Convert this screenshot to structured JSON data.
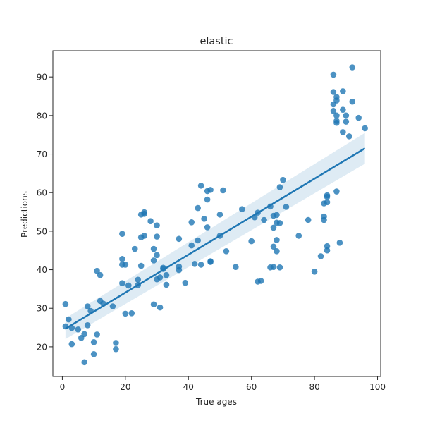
{
  "chart_data": {
    "type": "scatter",
    "title": "elastic",
    "xlabel": "True ages",
    "ylabel": "Predictions",
    "xlim": [
      -3,
      101
    ],
    "ylim": [
      12.3,
      96.8
    ],
    "xticks": [
      0,
      20,
      40,
      60,
      80,
      100
    ],
    "yticks": [
      20,
      30,
      40,
      50,
      60,
      70,
      80,
      90
    ],
    "grid": false,
    "colors": {
      "points": "#1f77b4",
      "line": "#1f77b4",
      "band": "#1f77b4"
    },
    "regression": {
      "x": [
        1,
        96
      ],
      "y": [
        24.7,
        71.5
      ],
      "ci_lower": [
        22.0,
        67.5
      ],
      "ci_upper": [
        27.4,
        75.5
      ]
    },
    "points": [
      [
        1,
        31.1
      ],
      [
        1,
        25.3
      ],
      [
        2,
        27.1
      ],
      [
        3,
        24.9
      ],
      [
        3,
        20.7
      ],
      [
        5,
        24.5
      ],
      [
        6,
        22.3
      ],
      [
        7,
        23.3
      ],
      [
        7,
        16.0
      ],
      [
        8,
        30.5
      ],
      [
        8,
        25.6
      ],
      [
        9,
        29.3
      ],
      [
        10,
        21.2
      ],
      [
        10,
        18.1
      ],
      [
        11,
        23.2
      ],
      [
        11,
        39.7
      ],
      [
        12,
        38.6
      ],
      [
        12,
        31.9
      ],
      [
        13,
        31.2
      ],
      [
        16,
        30.5
      ],
      [
        17,
        21.0
      ],
      [
        17,
        19.4
      ],
      [
        19,
        49.3
      ],
      [
        19,
        42.8
      ],
      [
        19,
        41.3
      ],
      [
        19,
        36.5
      ],
      [
        20,
        28.6
      ],
      [
        20,
        41.3
      ],
      [
        21,
        35.9
      ],
      [
        22,
        28.7
      ],
      [
        23,
        45.4
      ],
      [
        24,
        37.4
      ],
      [
        24,
        36.0
      ],
      [
        25,
        54.3
      ],
      [
        25,
        48.4
      ],
      [
        25,
        41.0
      ],
      [
        26,
        54.9
      ],
      [
        26,
        54.5
      ],
      [
        26,
        48.8
      ],
      [
        28,
        52.6
      ],
      [
        29,
        45.4
      ],
      [
        29,
        42.4
      ],
      [
        29,
        31.0
      ],
      [
        30,
        51.5
      ],
      [
        30,
        48.6
      ],
      [
        30,
        43.8
      ],
      [
        30,
        37.5
      ],
      [
        31,
        38.0
      ],
      [
        31,
        30.2
      ],
      [
        32,
        40.2
      ],
      [
        32,
        40.5
      ],
      [
        33,
        38.6
      ],
      [
        33,
        36.1
      ],
      [
        37,
        48.0
      ],
      [
        37,
        40.8
      ],
      [
        37,
        39.9
      ],
      [
        39,
        36.6
      ],
      [
        41,
        52.3
      ],
      [
        41,
        46.3
      ],
      [
        42,
        41.5
      ],
      [
        43,
        56.0
      ],
      [
        43,
        47.6
      ],
      [
        44,
        61.8
      ],
      [
        44,
        41.3
      ],
      [
        45,
        53.2
      ],
      [
        46,
        60.4
      ],
      [
        46,
        58.2
      ],
      [
        46,
        51.0
      ],
      [
        47,
        60.7
      ],
      [
        47,
        42.2
      ],
      [
        47,
        42.0
      ],
      [
        50,
        54.3
      ],
      [
        50,
        48.8
      ],
      [
        51,
        60.6
      ],
      [
        52,
        44.8
      ],
      [
        55,
        40.7
      ],
      [
        57,
        55.7
      ],
      [
        60,
        47.4
      ],
      [
        61,
        53.6
      ],
      [
        62,
        54.8
      ],
      [
        62,
        36.9
      ],
      [
        63,
        37.1
      ],
      [
        64,
        52.9
      ],
      [
        66,
        56.4
      ],
      [
        66,
        40.6
      ],
      [
        67,
        54.0
      ],
      [
        67,
        50.9
      ],
      [
        67,
        46.0
      ],
      [
        67,
        40.7
      ],
      [
        68,
        54.2
      ],
      [
        68,
        52.2
      ],
      [
        68,
        47.7
      ],
      [
        68,
        44.8
      ],
      [
        69,
        61.4
      ],
      [
        69,
        52.1
      ],
      [
        69,
        40.6
      ],
      [
        70,
        63.3
      ],
      [
        71,
        56.3
      ],
      [
        75,
        48.8
      ],
      [
        78,
        52.9
      ],
      [
        80,
        39.5
      ],
      [
        82,
        43.5
      ],
      [
        83,
        57.2
      ],
      [
        83,
        53.8
      ],
      [
        83,
        52.9
      ],
      [
        84,
        59.3
      ],
      [
        84,
        58.9
      ],
      [
        84,
        57.5
      ],
      [
        84,
        46.1
      ],
      [
        84,
        45.0
      ],
      [
        86,
        90.6
      ],
      [
        86,
        86.1
      ],
      [
        86,
        82.9
      ],
      [
        86,
        81.2
      ],
      [
        87,
        84.8
      ],
      [
        87,
        83.9
      ],
      [
        87,
        80.0
      ],
      [
        87,
        78.6
      ],
      [
        87,
        78.1
      ],
      [
        87,
        60.3
      ],
      [
        88,
        47.0
      ],
      [
        89,
        86.3
      ],
      [
        89,
        81.5
      ],
      [
        89,
        75.7
      ],
      [
        90,
        80.0
      ],
      [
        90,
        78.4
      ],
      [
        91,
        74.6
      ],
      [
        92,
        92.5
      ],
      [
        92,
        83.6
      ],
      [
        94,
        79.4
      ],
      [
        96,
        76.7
      ]
    ]
  }
}
